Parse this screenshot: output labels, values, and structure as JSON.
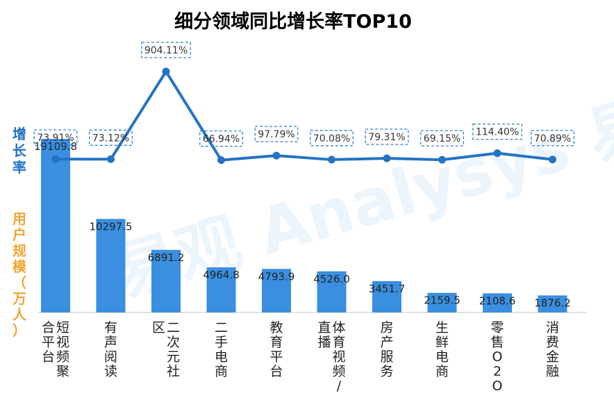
{
  "chart_data": {
    "type": "bar",
    "title": "细分领域同比增长率TOP10",
    "ylabel_growth": "增长率",
    "ylabel_users": "用户规模（万人）",
    "categories": [
      "短视频聚合平台",
      "有声阅读",
      "二次元社区",
      "二手电商",
      "教育平台",
      "体育视频/直播",
      "房产服务",
      "生鲜电商",
      "零售O2O",
      "消费金融"
    ],
    "category_lines": [
      [
        "短视频聚",
        "合平台"
      ],
      [
        "有声阅读"
      ],
      [
        "二次元社",
        "区"
      ],
      [
        "二手电商"
      ],
      [
        "教育平台"
      ],
      [
        "体育视频/",
        "直播"
      ],
      [
        "房产服务"
      ],
      [
        "生鲜电商"
      ],
      [
        "零售O2O"
      ],
      [
        "消费金融"
      ]
    ],
    "series": [
      {
        "name": "用户规模（万人）",
        "type": "bar",
        "values": [
          19109.8,
          10297.5,
          6891.2,
          4964.8,
          4793.9,
          4526.0,
          3451.7,
          2159.5,
          2108.6,
          1876.2
        ],
        "labels": [
          "19109.8",
          "10297.5",
          "6891.2",
          "4964.8",
          "4793.9",
          "4526.0",
          "3451.7",
          "2159.5",
          "2108.6",
          "1876.2"
        ]
      },
      {
        "name": "增长率",
        "type": "line",
        "values": [
          73.91,
          73.12,
          904.11,
          66.94,
          97.79,
          70.08,
          79.31,
          69.15,
          114.4,
          70.89
        ],
        "labels": [
          "73.91%",
          "73.12%",
          "904.11%",
          "66.94%",
          "97.79%",
          "70.08%",
          "79.31%",
          "69.15%",
          "114.40%",
          "70.89%"
        ]
      }
    ],
    "grid": false,
    "colors": {
      "bar": "#3a8fe0",
      "line": "#2473c5",
      "title": "#f2a531",
      "growth_label": "#2473c5",
      "users_label": "#f2a531"
    }
  },
  "watermark": "易观 Analysys 易观 数据分析"
}
